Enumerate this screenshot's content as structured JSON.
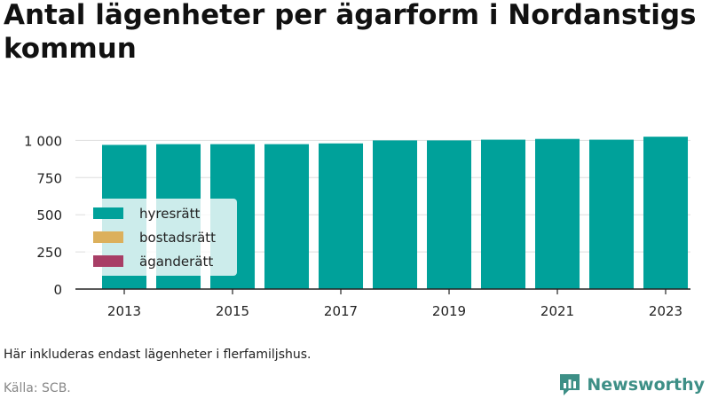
{
  "chart_data": {
    "type": "bar",
    "title": "Antal lägenheter per ägarform i Nordanstigs kommun",
    "x": [
      2013,
      2014,
      2015,
      2016,
      2017,
      2018,
      2019,
      2020,
      2021,
      2022,
      2023
    ],
    "x_tick_labels": [
      "2013",
      "2015",
      "2017",
      "2019",
      "2021",
      "2023"
    ],
    "y_ticks": [
      0,
      250,
      500,
      750,
      1000
    ],
    "y_tick_labels": [
      "0",
      "250",
      "500",
      "750",
      "1 000"
    ],
    "ylim": [
      0,
      1050
    ],
    "stacked": true,
    "series": [
      {
        "name": "hyresrätt",
        "color": "#00a19a",
        "values": [
          970,
          975,
          975,
          975,
          980,
          1000,
          1000,
          1005,
          1010,
          1005,
          1025
        ]
      },
      {
        "name": "bostadsrätt",
        "color": "#dcb05c",
        "values": [
          0,
          0,
          0,
          0,
          0,
          0,
          0,
          0,
          0,
          0,
          0
        ]
      },
      {
        "name": "äganderätt",
        "color": "#a83e66",
        "values": [
          0,
          0,
          0,
          0,
          0,
          0,
          0,
          0,
          0,
          0,
          0
        ]
      }
    ],
    "grid": true,
    "legend_position": "bottom-left"
  },
  "footer": {
    "note": "Här inkluderas endast lägenheter i flerfamiljshus.",
    "source": "Källa: SCB.",
    "brand": "Newsworthy"
  },
  "colors": {
    "axis": "#222222",
    "grid": "#dddddd",
    "brand": "#3d8f86"
  }
}
